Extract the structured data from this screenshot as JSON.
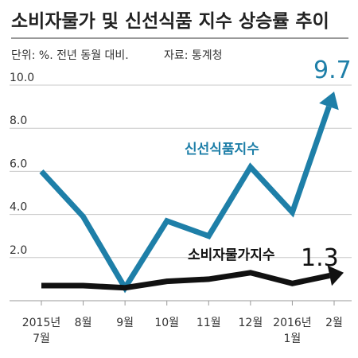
{
  "header": {
    "title": "소비자물가 및 신선식품 지수 상승률 추이",
    "unit": "단위: %. 전년 동월 대비.",
    "source": "자료: 통계청"
  },
  "colors": {
    "fresh": "#1e7fa8",
    "cpi": "#111111",
    "grid": "#c8c8c8"
  },
  "chart_data": {
    "type": "line",
    "categories": [
      [
        "2015년",
        "7월"
      ],
      [
        "8월"
      ],
      [
        "9월"
      ],
      [
        "10월"
      ],
      [
        "11월"
      ],
      [
        "12월"
      ],
      [
        "2016년",
        "1월"
      ],
      [
        "2월"
      ]
    ],
    "series": [
      {
        "name": "신선식품지수",
        "values": [
          6.0,
          3.9,
          0.6,
          3.7,
          3.0,
          6.2,
          4.1,
          9.7
        ]
      },
      {
        "name": "소비자물가지수",
        "values": [
          0.7,
          0.7,
          0.6,
          0.9,
          1.0,
          1.3,
          0.8,
          1.3
        ]
      }
    ],
    "ylim": [
      0,
      10
    ],
    "yticks": [
      "2.0",
      "4.0",
      "6.0",
      "8.0",
      "10.0"
    ],
    "end_labels": [
      "9.7",
      "1.3"
    ],
    "grid": true
  }
}
